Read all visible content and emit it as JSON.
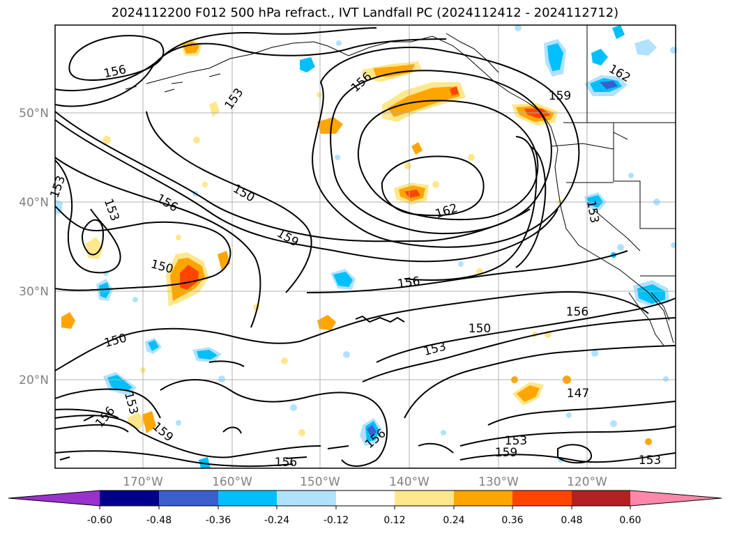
{
  "title": "2024112200 F012 500 hPa refract., IVT Landfall PC (2024112412 - 2024112712)",
  "lat_labels": [
    "50°N",
    "40°N",
    "30°N",
    "20°N"
  ],
  "lon_labels": [
    "170°W",
    "160°W",
    "150°W",
    "140°W",
    "130°W",
    "120°W"
  ],
  "contour_labels": [
    "156",
    "153",
    "156",
    "159",
    "162",
    "153",
    "153",
    "150",
    "156",
    "159",
    "150",
    "156",
    "162",
    "150",
    "150",
    "153",
    "156",
    "153",
    "147",
    "156",
    "153",
    "159",
    "156",
    "159",
    "153",
    "153",
    "156"
  ],
  "colorbar": {
    "ticks": [
      "-0.60",
      "-0.48",
      "-0.36",
      "-0.24",
      "-0.12",
      "0.12",
      "0.24",
      "0.36",
      "0.48",
      "0.60"
    ],
    "colors": [
      "#9932CC",
      "#00008B",
      "#3A5FCD",
      "#00BFFF",
      "#B0E2FF",
      "#FFFFFF",
      "#FFE78C",
      "#FFA500",
      "#FF4500",
      "#B22222",
      "#FF88AA"
    ]
  },
  "colors": {
    "pos_low": "#FFE78C",
    "pos_mid": "#FFA500",
    "pos_high": "#FF4500",
    "neg_low": "#B0E2FF",
    "neg_mid": "#00BFFF",
    "neg_high": "#3A5FCD",
    "grid": "#b0b0b0",
    "contour": "#000000"
  }
}
